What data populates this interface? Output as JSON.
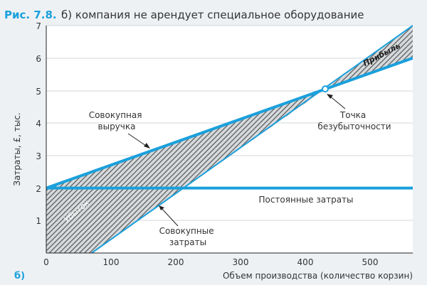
{
  "figure": {
    "label": "Рис. 7.8.",
    "caption": "б) компания не арендует специальное оборудование",
    "panel_tag": "б)"
  },
  "chart_data": {
    "type": "line",
    "xlabel": "Объем производства (количество корзин)",
    "ylabel": "Затраты, £, тыс.",
    "xlim": [
      0,
      565
    ],
    "ylim": [
      0,
      7
    ],
    "x_ticks": [
      "0",
      "100",
      "200",
      "300",
      "400",
      "500"
    ],
    "y_ticks": [
      "1",
      "2",
      "3",
      "4",
      "5",
      "6",
      "7"
    ],
    "series": [
      {
        "key": "revenue",
        "points": [
          [
            0,
            2
          ],
          [
            565,
            6
          ]
        ]
      },
      {
        "key": "total_cost",
        "points": [
          [
            70,
            0
          ],
          [
            565,
            7
          ]
        ]
      },
      {
        "key": "fixed_cost",
        "points": [
          [
            0,
            2
          ],
          [
            565,
            2
          ]
        ]
      }
    ],
    "break_even": {
      "x": 430,
      "y": 5.05
    },
    "regions": {
      "loss": "Убыток",
      "profit": "Прибыль"
    },
    "annotations": {
      "revenue": [
        "Совокупная",
        "выручка"
      ],
      "total_cost": [
        "Совокупные",
        "затраты"
      ],
      "fixed_cost": "Постоянные затраты",
      "break_even": [
        "Точка",
        "безубыточности"
      ]
    },
    "colors": {
      "line": "#1aa0dc",
      "hatch": "#5a5a5a",
      "figure_label": "#1aa0dc",
      "text": "#333333"
    }
  }
}
